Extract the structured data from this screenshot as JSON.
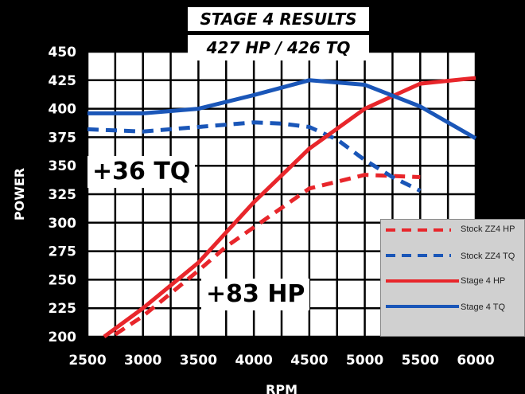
{
  "chart_data": {
    "type": "line",
    "title": "STAGE 4 RESULTS",
    "subtitle": "427 HP / 426 TQ",
    "xlabel": "RPM",
    "ylabel": "POWER",
    "xlim": [
      2500,
      6000
    ],
    "ylim": [
      200,
      450
    ],
    "x_ticks": [
      "2500",
      "3000",
      "3500",
      "4000",
      "4500",
      "5000",
      "5500",
      "6000"
    ],
    "y_ticks": [
      "200",
      "225",
      "250",
      "275",
      "300",
      "325",
      "350",
      "375",
      "400",
      "425",
      "450"
    ],
    "grid": true,
    "legend_position": "bottom-right",
    "series": [
      {
        "name": "Stock ZZ4 HP",
        "color": "#e8262b",
        "dash": true,
        "x": [
          2750,
          3000,
          3250,
          3500,
          3750,
          4000,
          4250,
          4500,
          4750,
          5000,
          5250,
          5500
        ],
        "y": [
          202,
          218,
          238,
          258,
          279,
          296,
          313,
          330,
          336,
          342,
          341,
          340
        ]
      },
      {
        "name": "Stock ZZ4 TQ",
        "color": "#1a56b8",
        "dash": true,
        "x": [
          2500,
          3000,
          3500,
          4000,
          4250,
          4500,
          4750,
          5000,
          5250,
          5500
        ],
        "y": [
          382,
          380,
          384,
          388,
          387,
          384,
          373,
          355,
          340,
          328
        ]
      },
      {
        "name": "Stage 4 HP",
        "color": "#e8262b",
        "dash": false,
        "x": [
          2650,
          3000,
          3500,
          4000,
          4500,
          5000,
          5500,
          6000
        ],
        "y": [
          200,
          225,
          265,
          318,
          365,
          400,
          422,
          427
        ]
      },
      {
        "name": "Stage 4 TQ",
        "color": "#1a56b8",
        "dash": false,
        "x": [
          2500,
          3000,
          3500,
          4000,
          4500,
          5000,
          5500,
          6000
        ],
        "y": [
          396,
          396,
          400,
          412,
          425,
          421,
          402,
          374
        ]
      }
    ],
    "annotations": [
      "+36 TQ",
      "+83 HP"
    ]
  }
}
